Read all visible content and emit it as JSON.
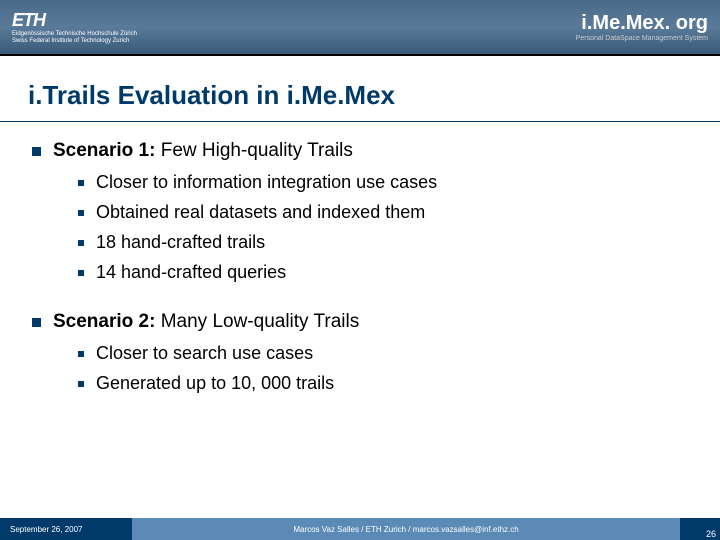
{
  "header": {
    "logo": "ETH",
    "sub1": "Eidgenössische Technische Hochschule Zürich",
    "sub2": "Swiss Federal Institute of Technology Zurich",
    "brand": "i.Me.Mex. org",
    "brand_sub": "Personal DataSpace Management System"
  },
  "title": "i.Trails Evaluation in i.Me.Mex",
  "scenarios": [
    {
      "label": "Scenario 1:",
      "desc": " Few High-quality Trails",
      "items": [
        "Closer to information integration use cases",
        "Obtained real datasets and indexed them",
        "18 hand-crafted trails",
        "14 hand-crafted queries"
      ]
    },
    {
      "label": "Scenario 2:",
      "desc": " Many Low-quality Trails",
      "items": [
        "Closer to search use cases",
        "Generated up to 10, 000 trails"
      ]
    }
  ],
  "footer": {
    "date": "September 26, 2007",
    "center": "Marcos Vaz Salles / ETH Zurich / marcos.vazsalles@inf.ethz.ch",
    "page": "26"
  }
}
